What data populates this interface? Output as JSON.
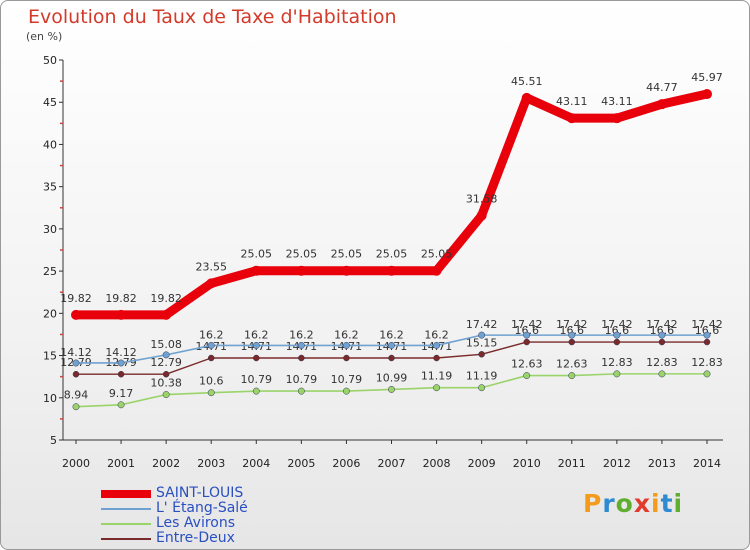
{
  "logo_text": "Proxiti",
  "chart_data": {
    "type": "line",
    "title": "Evolution du Taux de Taxe d'Habitation",
    "ylabel": "(en %)",
    "xlabel": "",
    "categories": [
      "2000",
      "2001",
      "2002",
      "2003",
      "2004",
      "2005",
      "2006",
      "2007",
      "2008",
      "2009",
      "2010",
      "2011",
      "2012",
      "2013",
      "2014"
    ],
    "ylim": [
      5,
      50
    ],
    "yticks": [
      5,
      10,
      15,
      20,
      25,
      30,
      35,
      40,
      45,
      50
    ],
    "grid": false,
    "legend_position": "bottom-left",
    "series": [
      {
        "name": "SAINT-LOUIS",
        "color": "#e8000b",
        "values": [
          19.82,
          19.82,
          19.82,
          23.55,
          25.05,
          25.05,
          25.05,
          25.05,
          25.05,
          31.58,
          45.51,
          43.11,
          43.11,
          44.77,
          45.97
        ],
        "labels": [
          "19.82",
          "19.82",
          "19.82",
          "23.55",
          "25.05",
          "25.05",
          "25.05",
          "25.05",
          "25.05",
          "31.58",
          "45.51",
          "43.11",
          "43.11",
          "44.77",
          "45.97"
        ]
      },
      {
        "name": "L' Étang-Salé",
        "color": "#6fa2d0",
        "values": [
          14.12,
          14.12,
          15.08,
          16.2,
          16.2,
          16.2,
          16.2,
          16.2,
          16.2,
          17.42,
          17.42,
          17.42,
          17.42,
          17.42,
          17.42
        ],
        "labels": [
          "14.12",
          "14.12",
          "15.08",
          "16.2",
          "16.2",
          "16.2",
          "16.2",
          "16.2",
          "16.2",
          "17.42",
          "17.42",
          "17.42",
          "17.42",
          "17.42",
          "17.42"
        ]
      },
      {
        "name": "Les Avirons",
        "color": "#9ad36a",
        "values": [
          8.94,
          9.17,
          10.38,
          10.6,
          10.79,
          10.79,
          10.79,
          10.99,
          11.19,
          11.19,
          12.63,
          12.63,
          12.83,
          12.83,
          12.83
        ],
        "labels": [
          "8.94",
          "9.17",
          "10.38",
          "10.6",
          "10.79",
          "10.79",
          "10.79",
          "10.99",
          "11.19",
          "11.19",
          "12.63",
          "12.63",
          "12.83",
          "12.83",
          "12.83"
        ]
      },
      {
        "name": "Entre-Deux",
        "color": "#7a2a2a",
        "values": [
          12.79,
          12.79,
          12.79,
          14.71,
          14.71,
          14.71,
          14.71,
          14.71,
          14.71,
          15.15,
          16.6,
          16.6,
          16.6,
          16.6,
          16.6
        ],
        "labels": [
          "12.79",
          "12.79",
          "12.79",
          "14.71",
          "14.71",
          "14.71",
          "14.71",
          "14.71",
          "14.71",
          "15.15",
          "16.6",
          "16.6",
          "16.6",
          "16.6",
          "16.6"
        ]
      }
    ]
  }
}
